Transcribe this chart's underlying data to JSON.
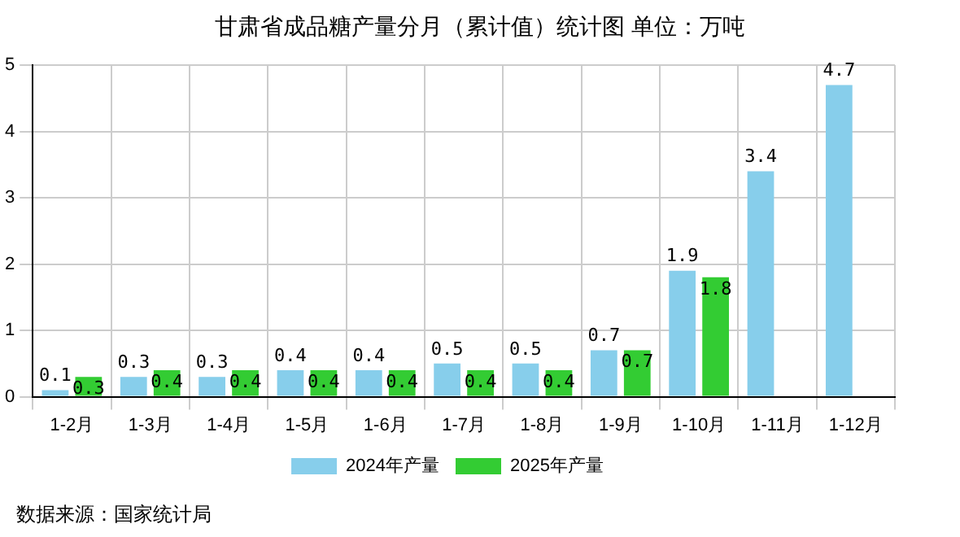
{
  "chart_data": {
    "type": "bar",
    "title": "甘肃省成品糖产量分月（累计值）统计图 单位：万吨",
    "categories": [
      "1-2月",
      "1-3月",
      "1-4月",
      "1-5月",
      "1-6月",
      "1-7月",
      "1-8月",
      "1-9月",
      "1-10月",
      "1-11月",
      "1-12月"
    ],
    "series": [
      {
        "name": "2024年产量",
        "color": "#87ceeb",
        "values": [
          0.1,
          0.3,
          0.3,
          0.4,
          0.4,
          0.5,
          0.5,
          0.7,
          1.9,
          3.4,
          4.7
        ]
      },
      {
        "name": "2025年产量",
        "color": "#33cc33",
        "values": [
          0.3,
          0.4,
          0.4,
          0.4,
          0.4,
          0.4,
          0.4,
          0.7,
          1.8,
          null,
          null
        ]
      }
    ],
    "ylim": [
      0,
      5
    ],
    "yticks": [
      0,
      1,
      2,
      3,
      4,
      5
    ],
    "grid": true,
    "legend": "bottom",
    "data_labels": true,
    "annotations": [
      "数据来源：国家统计局"
    ]
  }
}
